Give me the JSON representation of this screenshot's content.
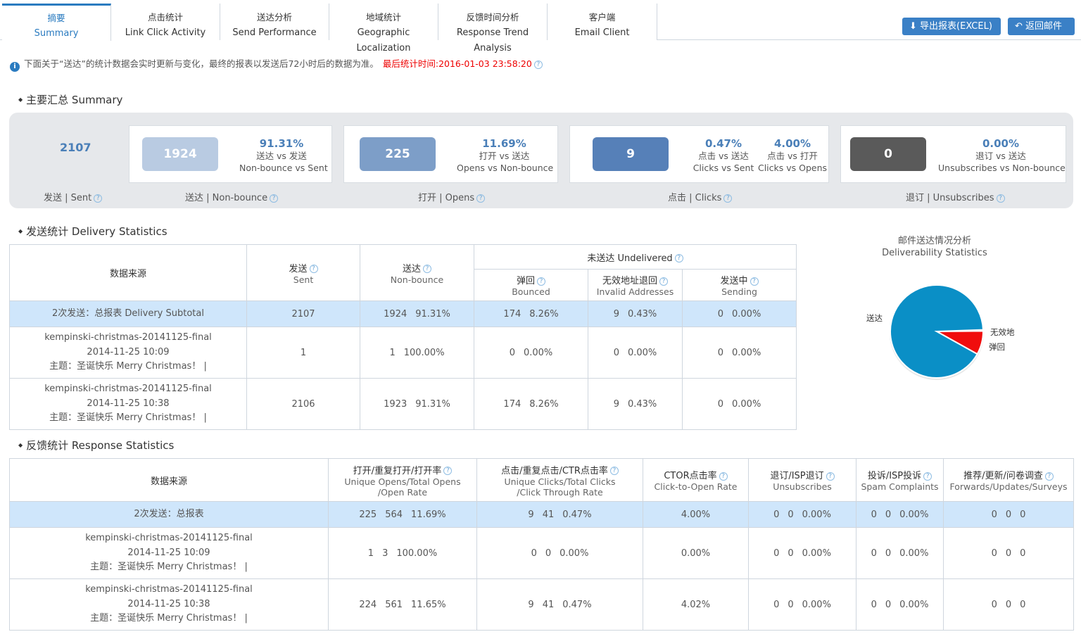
{
  "tabs": [
    {
      "zh": "摘要",
      "en": "Summary"
    },
    {
      "zh": "点击统计",
      "en": "Link Click Activity"
    },
    {
      "zh": "送达分析",
      "en": "Send Performance"
    },
    {
      "zh": "地域统计",
      "en": "Geographic Localization"
    },
    {
      "zh": "反馈时间分析",
      "en": "Response Trend Analysis"
    },
    {
      "zh": "客户端",
      "en": "Email Client"
    }
  ],
  "buttons": {
    "export": "导出报表(EXCEL)",
    "back": "返回邮件"
  },
  "notice": {
    "text": "下面关于“送达”的统计数据会实时更新与变化，最终的报表以发送后72小时后的数据为准。",
    "updated": "最后统计时间:2016-01-03 23:58:20"
  },
  "summary": {
    "title": "主要汇总 Summary",
    "sent": {
      "value": "2107",
      "caption": "发送 | Sent"
    },
    "nonbounce": {
      "value": "1924",
      "pct": "91.31%",
      "l1": "送达 vs 发送",
      "l2": "Non-bounce vs Sent",
      "caption": "送达 | Non-bounce"
    },
    "opens": {
      "value": "225",
      "pct": "11.69%",
      "l1": "打开 vs 送达",
      "l2": "Opens vs Non-bounce",
      "caption": "打开 | Opens"
    },
    "clicks": {
      "value": "9",
      "pct1": "0.47%",
      "a1": "点击 vs 送达",
      "b1": "Clicks vs Sent",
      "pct2": "4.00%",
      "a2": "点击 vs 打开",
      "b2": "Clicks vs Opens",
      "caption": "点击 | Clicks"
    },
    "unsubs": {
      "value": "0",
      "pct": "0.00%",
      "l1": "退订 vs 送达",
      "l2": "Unsubscribes vs Non-bounce",
      "caption": "退订 | Unsubscribes"
    }
  },
  "delivery": {
    "title": "发送统计 Delivery Statistics",
    "h": {
      "source": "数据来源",
      "sent_zh": "发送",
      "sent_en": "Sent",
      "nb_zh": "送达",
      "nb_en": "Non-bounce",
      "und": "未送达 Undelivered",
      "b_zh": "弹回",
      "b_en": "Bounced",
      "inv_zh": "无效地址退回",
      "inv_en": "Invalid Addresses",
      "s_zh": "发送中",
      "s_en": "Sending"
    },
    "rows": [
      {
        "src1": "2次发送：总报表 Delivery Subtotal",
        "src2": "",
        "src3": "",
        "sent": "2107",
        "nb": "1924",
        "nbp": "91.31%",
        "b": "174",
        "bp": "8.26%",
        "inv": "9",
        "invp": "0.43%",
        "s": "0",
        "sp": "0.00%"
      },
      {
        "src1": "kempinski-christmas-20141125-final",
        "src2": "2014-11-25 10:09",
        "src3": "主题：圣诞快乐 Merry Christmas！  |",
        "sent": "1",
        "nb": "1",
        "nbp": "100.00%",
        "b": "0",
        "bp": "0.00%",
        "inv": "0",
        "invp": "0.00%",
        "s": "0",
        "sp": "0.00%"
      },
      {
        "src1": "kempinski-christmas-20141125-final",
        "src2": "2014-11-25 10:38",
        "src3": "主题：圣诞快乐 Merry Christmas！  |",
        "sent": "2106",
        "nb": "1923",
        "nbp": "91.31%",
        "b": "174",
        "bp": "8.26%",
        "inv": "9",
        "invp": "0.43%",
        "s": "0",
        "sp": "0.00%"
      }
    ]
  },
  "chart_data": {
    "type": "pie",
    "title": "邮件送达情况分析 Deliverability Statistics",
    "title_zh": "邮件送达情况分析",
    "title_en": "Deliverability Statistics",
    "categories": [
      "送达",
      "无效地",
      "弹回"
    ],
    "values": [
      1924,
      9,
      174
    ],
    "colors": [
      "#0a8fc6",
      "#4a4a4a",
      "#f00d0d"
    ]
  },
  "response": {
    "title": "反馈统计 Response Statistics",
    "h": {
      "source": "数据来源",
      "open_zh": "打开/重复打开/打开率",
      "open_en1": "Unique Opens/Total Opens",
      "open_en2": "/Open Rate",
      "click_zh": "点击/重复点击/CTR点击率",
      "click_en1": "Unique Clicks/Total Clicks",
      "click_en2": "/Click Through Rate",
      "ctor_zh": "CTOR点击率",
      "ctor_en": "Click-to-Open Rate",
      "unsub_zh": "退订/ISP退订",
      "unsub_en": "Unsubscribes",
      "spam_zh": "投诉/ISP投诉",
      "spam_en": "Spam Complaints",
      "fwd_zh": "推荐/更新/问卷调查",
      "fwd_en": "Forwards/Updates/Surveys"
    },
    "rows": [
      {
        "src1": "2次发送：总报表",
        "src2": "",
        "src3": "",
        "o1": "225",
        "o2": "564",
        "o3": "11.69%",
        "c1": "9",
        "c2": "41",
        "c3": "0.47%",
        "ctor": "4.00%",
        "u1": "0",
        "u2": "0",
        "u3": "0.00%",
        "s1": "0",
        "s2": "0",
        "s3": "0.00%",
        "f1": "0",
        "f2": "0",
        "f3": "0"
      },
      {
        "src1": "kempinski-christmas-20141125-final",
        "src2": "2014-11-25 10:09",
        "src3": "主题：圣诞快乐 Merry Christmas！  |",
        "o1": "1",
        "o2": "3",
        "o3": "100.00%",
        "c1": "0",
        "c2": "0",
        "c3": "0.00%",
        "ctor": "0.00%",
        "u1": "0",
        "u2": "0",
        "u3": "0.00%",
        "s1": "0",
        "s2": "0",
        "s3": "0.00%",
        "f1": "0",
        "f2": "0",
        "f3": "0"
      },
      {
        "src1": "kempinski-christmas-20141125-final",
        "src2": "2014-11-25 10:38",
        "src3": "主题：圣诞快乐 Merry Christmas！  |",
        "o1": "224",
        "o2": "561",
        "o3": "11.65%",
        "c1": "9",
        "c2": "41",
        "c3": "0.47%",
        "ctor": "4.02%",
        "u1": "0",
        "u2": "0",
        "u3": "0.00%",
        "s1": "0",
        "s2": "0",
        "s3": "0.00%",
        "f1": "0",
        "f2": "0",
        "f3": "0"
      }
    ]
  },
  "icons": {
    "help": "question-icon",
    "info": "info-icon",
    "download": "download-icon",
    "back": "reply-icon"
  }
}
